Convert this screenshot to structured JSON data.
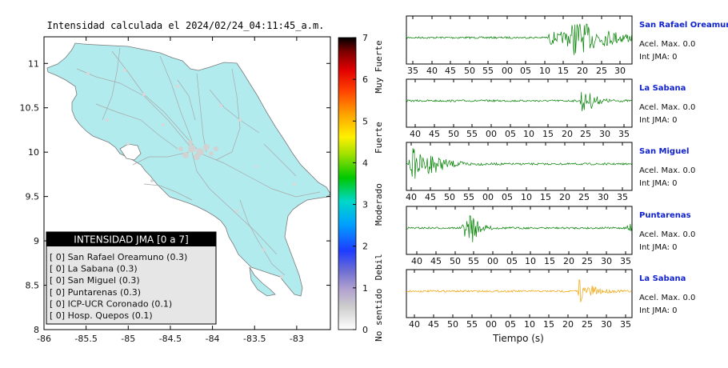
{
  "chart_data": [
    {
      "type": "other",
      "title": "Intensidad calculada el 2024/02/24_04:11:45_a.m.",
      "x": {
        "ticks": [
          -86,
          -85.5,
          -85,
          -84.5,
          -84,
          -83.5,
          -83
        ],
        "range": [
          -86,
          -82.6
        ]
      },
      "y": {
        "ticks": [
          8,
          8.5,
          9,
          9.5,
          10,
          10.5,
          11
        ],
        "range": [
          8,
          11.3
        ]
      },
      "legend": {
        "title": "INTENSIDAD JMA [0 a 7]",
        "rows": [
          "[ 0]  San Rafael Oreamuno (0.3)",
          "[ 0]  La Sabana (0.3)",
          "[ 0]  San Miguel (0.3)",
          "[ 0]  Puntarenas (0.3)",
          "[ 0]  ICP-UCR Coronado (0.1)",
          "[ 0]  Hosp. Quepos (0.1)"
        ]
      },
      "colorbar": {
        "ticks": [
          "0",
          "1",
          "2",
          "3",
          "4",
          "5",
          "6",
          "7"
        ],
        "categories": [
          "No sentido",
          "Debil",
          "Moderado",
          "Fuerte",
          "Muy Fuerte"
        ]
      }
    },
    {
      "type": "line",
      "xlabel": "Tiempo (s)",
      "series": [
        {
          "name": "San Rafael Oreamuno",
          "accel": "Acel. Max. 0.0",
          "jma": "Int JMA: 0",
          "color": "#008000",
          "ticks": [
            "35",
            "40",
            "45",
            "50",
            "55",
            "00",
            "05",
            "10",
            "15",
            "20",
            "25",
            "30"
          ]
        },
        {
          "name": "La Sabana",
          "accel": "Acel. Max. 0.0",
          "jma": "Int JMA: 0",
          "color": "#008000",
          "ticks": [
            "40",
            "45",
            "50",
            "55",
            "00",
            "05",
            "10",
            "15",
            "20",
            "25",
            "30",
            "35"
          ]
        },
        {
          "name": "San Miguel",
          "accel": "Acel. Max. 0.0",
          "jma": "Int JMA: 0",
          "color": "#008000",
          "ticks": [
            "40",
            "45",
            "50",
            "55",
            "00",
            "05",
            "10",
            "15",
            "20",
            "25",
            "30",
            "35"
          ]
        },
        {
          "name": "Puntarenas",
          "accel": "Acel. Max. 0.0",
          "jma": "Int JMA: 0",
          "color": "#008000",
          "ticks": [
            "40",
            "45",
            "50",
            "55",
            "00",
            "05",
            "10",
            "15",
            "20",
            "25",
            "30",
            "35"
          ]
        },
        {
          "name": "La Sabana",
          "accel": "Acel. Max. 0.0",
          "jma": "Int JMA: 0",
          "color": "#f0a000",
          "ticks": [
            "40",
            "45",
            "50",
            "55",
            "00",
            "05",
            "10",
            "15",
            "20",
            "25",
            "30",
            "35"
          ]
        }
      ]
    }
  ]
}
